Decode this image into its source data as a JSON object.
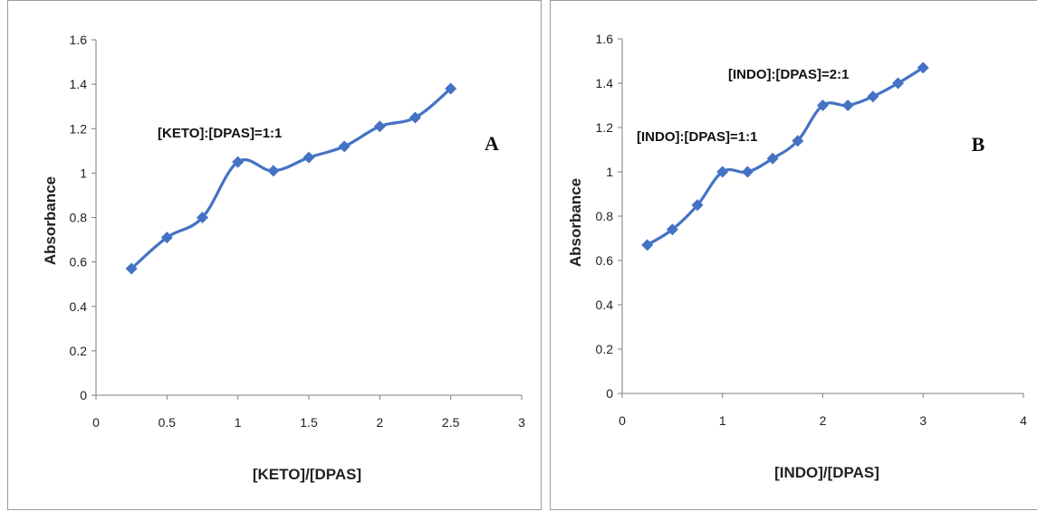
{
  "series_color": "#4472c4",
  "chart_data": [
    {
      "type": "line",
      "panel_letter": "A",
      "xlabel": "[KETO]/[DPAS]",
      "ylabel": "Absorbance",
      "xlim": [
        0,
        3
      ],
      "ylim": [
        0,
        1.6
      ],
      "xticks": [
        "0",
        "0.5",
        "1",
        "1.5",
        "2",
        "2.5",
        "3"
      ],
      "yticks": [
        "0",
        "0.2",
        "0.4",
        "0.6",
        "0.8",
        "1",
        "1.2",
        "1.4",
        "1.6"
      ],
      "grid": false,
      "annotations": [
        "[KETO]:[DPAS]=1:1"
      ],
      "marker": "diamond",
      "series": [
        {
          "x": [
            0.25,
            0.5,
            0.75,
            1.0,
            1.25,
            1.5,
            1.75,
            2.0,
            2.25,
            2.5
          ],
          "y": [
            0.57,
            0.71,
            0.8,
            1.05,
            1.01,
            1.07,
            1.12,
            1.21,
            1.25,
            1.38
          ]
        }
      ]
    },
    {
      "type": "line",
      "panel_letter": "B",
      "xlabel": "[INDO]/[DPAS]",
      "ylabel": "Absorbance",
      "xlim": [
        0,
        4
      ],
      "ylim": [
        0,
        1.6
      ],
      "xticks": [
        "0",
        "1",
        "2",
        "3",
        "4"
      ],
      "yticks": [
        "0",
        "0.2",
        "0.4",
        "0.6",
        "0.8",
        "1",
        "1.2",
        "1.4",
        "1.6"
      ],
      "grid": false,
      "annotations": [
        "[INDO]:[DPAS]=2:1",
        "[INDO]:[DPAS]=1:1"
      ],
      "marker": "diamond",
      "series": [
        {
          "x": [
            0.25,
            0.5,
            0.75,
            1.0,
            1.25,
            1.5,
            1.75,
            2.0,
            2.25,
            2.5,
            2.75,
            3.0
          ],
          "y": [
            0.67,
            0.74,
            0.85,
            1.0,
            1.0,
            1.06,
            1.14,
            1.3,
            1.3,
            1.34,
            1.4,
            1.47
          ]
        }
      ]
    }
  ]
}
